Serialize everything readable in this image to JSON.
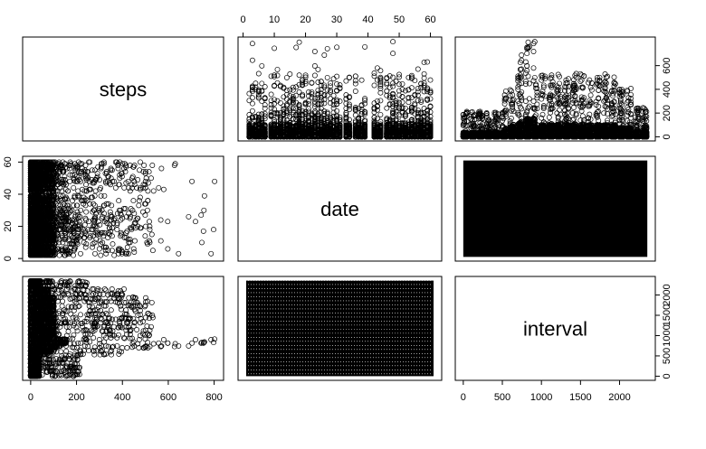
{
  "chart_data": {
    "type": "scatter",
    "variables": [
      "steps",
      "date",
      "interval"
    ],
    "layout": "3x3 pairs scatterplot matrix",
    "axis_ticks": {
      "steps": [
        "0",
        "200",
        "400",
        "600",
        "800"
      ],
      "date": [
        "0",
        "10",
        "20",
        "30",
        "40",
        "50",
        "60"
      ],
      "interval": [
        "0",
        "500",
        "1000",
        "1500",
        "2000"
      ]
    },
    "axis_ticks_side": {
      "steps": [
        "0",
        "200",
        "400",
        "600"
      ],
      "date": [
        "0",
        "20",
        "40",
        "60"
      ],
      "interval": [
        "0",
        "500",
        "1000",
        "1500",
        "2000"
      ]
    },
    "ranges": {
      "steps": [
        0,
        806
      ],
      "date": [
        1,
        61
      ],
      "interval": [
        0,
        2355
      ]
    },
    "summary": {
      "steps_vs_date": "dense band at steps 0-100 for nearly all days; sparse points up to ~800; gaps on days 1, 8, 32, 35, 40-41, 45",
      "steps_vs_interval": "low near interval 0-500, peak ~800 steps around interval 800-900, moderate 100-500 during day, tapering after 2000",
      "date_vs_interval": "complete regular grid: 61 days x 288 five-minute intervals"
    },
    "marker": "open circle",
    "grid": false,
    "legend": "none"
  }
}
